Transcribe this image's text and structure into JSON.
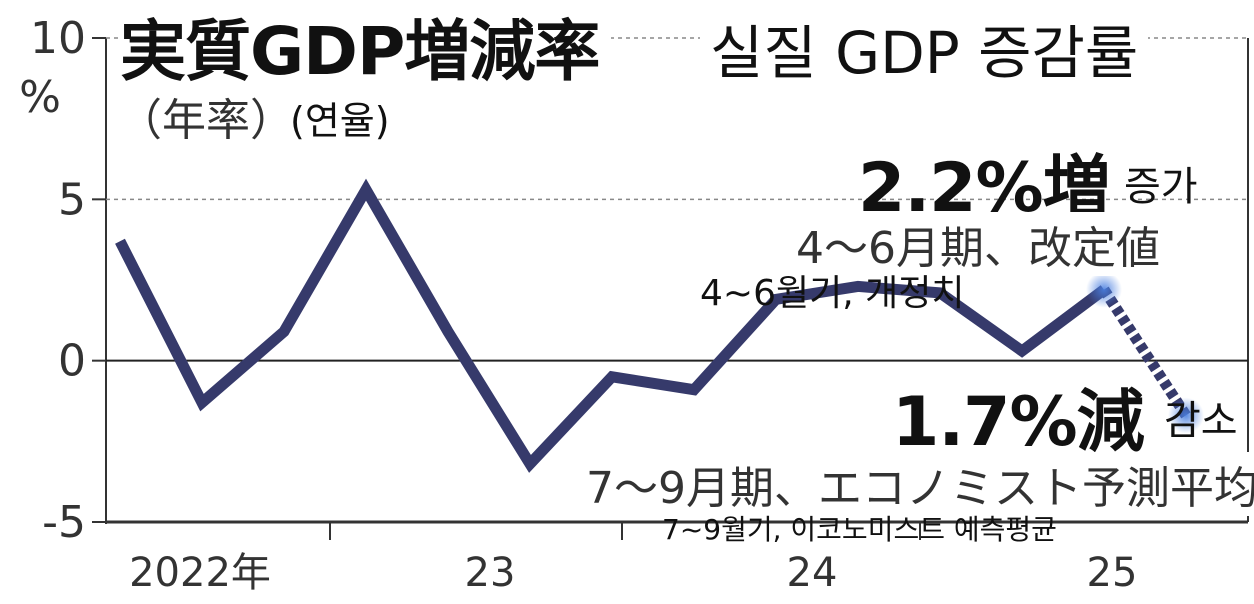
{
  "title": {
    "jp": "実質GDP増減率",
    "ko": "실질 GDP 증감률",
    "sub_jp": "（年率）",
    "sub_ko": "(연율)"
  },
  "annotations": {
    "q2_value_jp": "2.2%増",
    "q2_value_ko": "증가",
    "q2_desc_jp": "4～6月期、改定値",
    "q2_desc_ko": "4~6월기, 개정치",
    "q3_value_jp": "1.7%減",
    "q3_value_ko": "감소",
    "q3_desc_jp": "7～9月期、エコノミスト予測平均",
    "q3_desc_ko": "7~9월기, 이코노미스트 예측평균"
  },
  "chart_data": {
    "type": "line",
    "title": "実質GDP増減率",
    "ylabel": "%",
    "ylim": [
      -5,
      10
    ],
    "y_ticks": [
      "10",
      "5",
      "0",
      "-5"
    ],
    "y_unit": "%",
    "x_tick_labels": [
      "2022年",
      "23",
      "24",
      "25"
    ],
    "grid": "dashed lines at 5 and 10, solid line at 0",
    "series": [
      {
        "values": [
          3.7,
          -1.3,
          0.9,
          5.3,
          0.9,
          -3.2,
          -0.5,
          -0.9,
          1.9,
          2.3,
          2.1,
          0.3,
          2.2
        ],
        "style": "solid"
      },
      {
        "values_from_index": 12,
        "values": [
          2.2,
          -1.7
        ],
        "style": "dashed",
        "label": "forecast"
      }
    ],
    "colors": {
      "line": "#363a6b",
      "highlight": "#4a7fe0"
    }
  }
}
